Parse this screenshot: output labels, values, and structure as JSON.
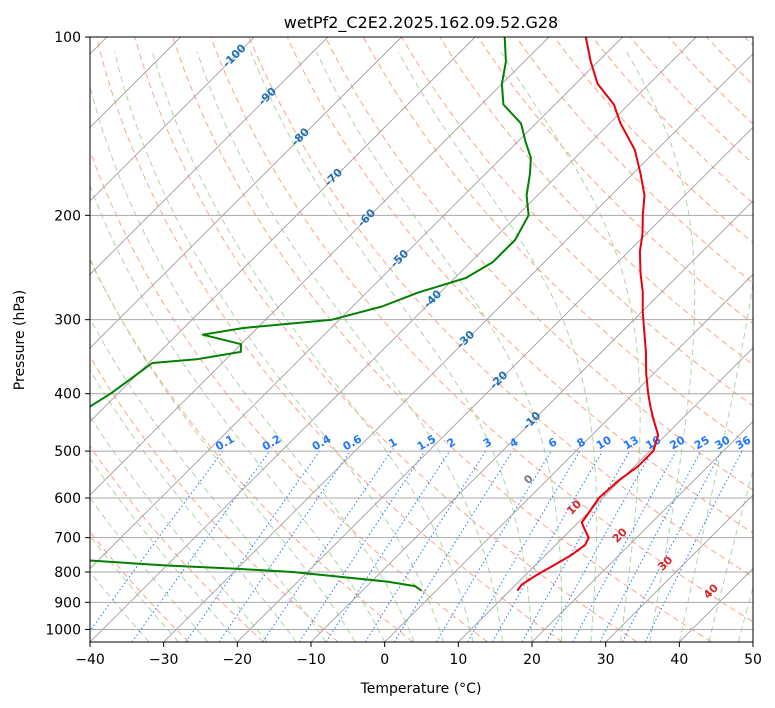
{
  "chart_data": {
    "type": "skew-t log-p",
    "title": "wetPf2_C2E2.2025.162.09.52.G28",
    "xlabel": "Temperature (°C)",
    "ylabel": "Pressure (hPa)",
    "xlim": [
      -40,
      50
    ],
    "ylim": [
      1050,
      100
    ],
    "y_scale": "log",
    "grid": true,
    "x_ticks": [
      -40,
      -30,
      -20,
      -10,
      0,
      10,
      20,
      30,
      40,
      50
    ],
    "y_ticks": [
      100,
      200,
      300,
      400,
      500,
      600,
      700,
      800,
      900,
      1000
    ],
    "colors": {
      "temperature": "#e8000b",
      "dewpoint": "#008000",
      "dry_adiabat": "#f9a58a",
      "moist_adiabat": "#a9d8a2",
      "isotherm": "#a0a0a0",
      "mixing_ratio": "#1f77ff",
      "isotherm_label": "#1f6fb5",
      "wetbulb_label": "#d62728",
      "theta_label": "#7a7a7a"
    },
    "series": [
      {
        "name": "",
        "kind": "temperature",
        "points": [
          {
            "p": 860,
            "t": 11.0
          },
          {
            "p": 840,
            "t": 10.8
          },
          {
            "p": 810,
            "t": 11.5
          },
          {
            "p": 780,
            "t": 12.5
          },
          {
            "p": 750,
            "t": 13.5
          },
          {
            "p": 720,
            "t": 14.0
          },
          {
            "p": 700,
            "t": 13.5
          },
          {
            "p": 680,
            "t": 12.0
          },
          {
            "p": 660,
            "t": 10.5
          },
          {
            "p": 640,
            "t": 10.2
          },
          {
            "p": 600,
            "t": 9.5
          },
          {
            "p": 560,
            "t": 9.8
          },
          {
            "p": 530,
            "t": 10.5
          },
          {
            "p": 500,
            "t": 10.5
          },
          {
            "p": 470,
            "t": 9.0
          },
          {
            "p": 440,
            "t": 6.0
          },
          {
            "p": 420,
            "t": 4.0
          },
          {
            "p": 400,
            "t": 2.0
          },
          {
            "p": 370,
            "t": -1.0
          },
          {
            "p": 340,
            "t": -4.0
          },
          {
            "p": 310,
            "t": -7.5
          },
          {
            "p": 290,
            "t": -10.0
          },
          {
            "p": 270,
            "t": -12.5
          },
          {
            "p": 250,
            "t": -15.5
          },
          {
            "p": 230,
            "t": -18.5
          },
          {
            "p": 215,
            "t": -20.5
          },
          {
            "p": 200,
            "t": -23.0
          },
          {
            "p": 185,
            "t": -25.5
          },
          {
            "p": 170,
            "t": -29.0
          },
          {
            "p": 155,
            "t": -33.0
          },
          {
            "p": 140,
            "t": -38.5
          },
          {
            "p": 130,
            "t": -42.0
          },
          {
            "p": 120,
            "t": -47.0
          },
          {
            "p": 110,
            "t": -51.0
          },
          {
            "p": 100,
            "t": -55.0
          }
        ]
      },
      {
        "name": "",
        "kind": "dewpoint",
        "points": [
          {
            "p": 860,
            "t": -2.0
          },
          {
            "p": 845,
            "t": -3.5
          },
          {
            "p": 830,
            "t": -8.0
          },
          {
            "p": 815,
            "t": -15.0
          },
          {
            "p": 800,
            "t": -22.0
          },
          {
            "p": 790,
            "t": -30.0
          },
          {
            "p": 780,
            "t": -40.0
          },
          {
            "p": 760,
            "t": -55.0
          },
          {
            "p": 745,
            "t": -70.0
          },
          {
            "p": 420,
            "t": -72.0
          },
          {
            "p": 400,
            "t": -71.0
          },
          {
            "p": 370,
            "t": -70.0
          },
          {
            "p": 355,
            "t": -69.5
          },
          {
            "p": 350,
            "t": -64.0
          },
          {
            "p": 340,
            "t": -59.0
          },
          {
            "p": 330,
            "t": -60.0
          },
          {
            "p": 318,
            "t": -66.5
          },
          {
            "p": 310,
            "t": -62.0
          },
          {
            "p": 300,
            "t": -51.0
          },
          {
            "p": 285,
            "t": -46.0
          },
          {
            "p": 270,
            "t": -43.0
          },
          {
            "p": 255,
            "t": -38.5
          },
          {
            "p": 240,
            "t": -37.0
          },
          {
            "p": 220,
            "t": -37.0
          },
          {
            "p": 200,
            "t": -38.5
          },
          {
            "p": 185,
            "t": -41.5
          },
          {
            "p": 170,
            "t": -44.0
          },
          {
            "p": 160,
            "t": -46.0
          },
          {
            "p": 150,
            "t": -49.0
          },
          {
            "p": 140,
            "t": -52.0
          },
          {
            "p": 130,
            "t": -57.0
          },
          {
            "p": 120,
            "t": -60.0
          },
          {
            "p": 110,
            "t": -62.5
          },
          {
            "p": 100,
            "t": -66.0
          }
        ]
      }
    ],
    "isotherm_labels": [
      "-100",
      "-90",
      "-80",
      "-70",
      "-60",
      "-50",
      "-40",
      "-30",
      "-20",
      "-10"
    ],
    "mixing_ratio_labels": [
      "0.1",
      "0.2",
      "0.4",
      "0.6",
      "1",
      "1.5",
      "2",
      "3",
      "4",
      "6",
      "8",
      "10",
      "13",
      "16",
      "20",
      "25",
      "30",
      "36"
    ],
    "wetbulb_labels": [
      "0",
      "10",
      "20",
      "30",
      "40"
    ]
  }
}
